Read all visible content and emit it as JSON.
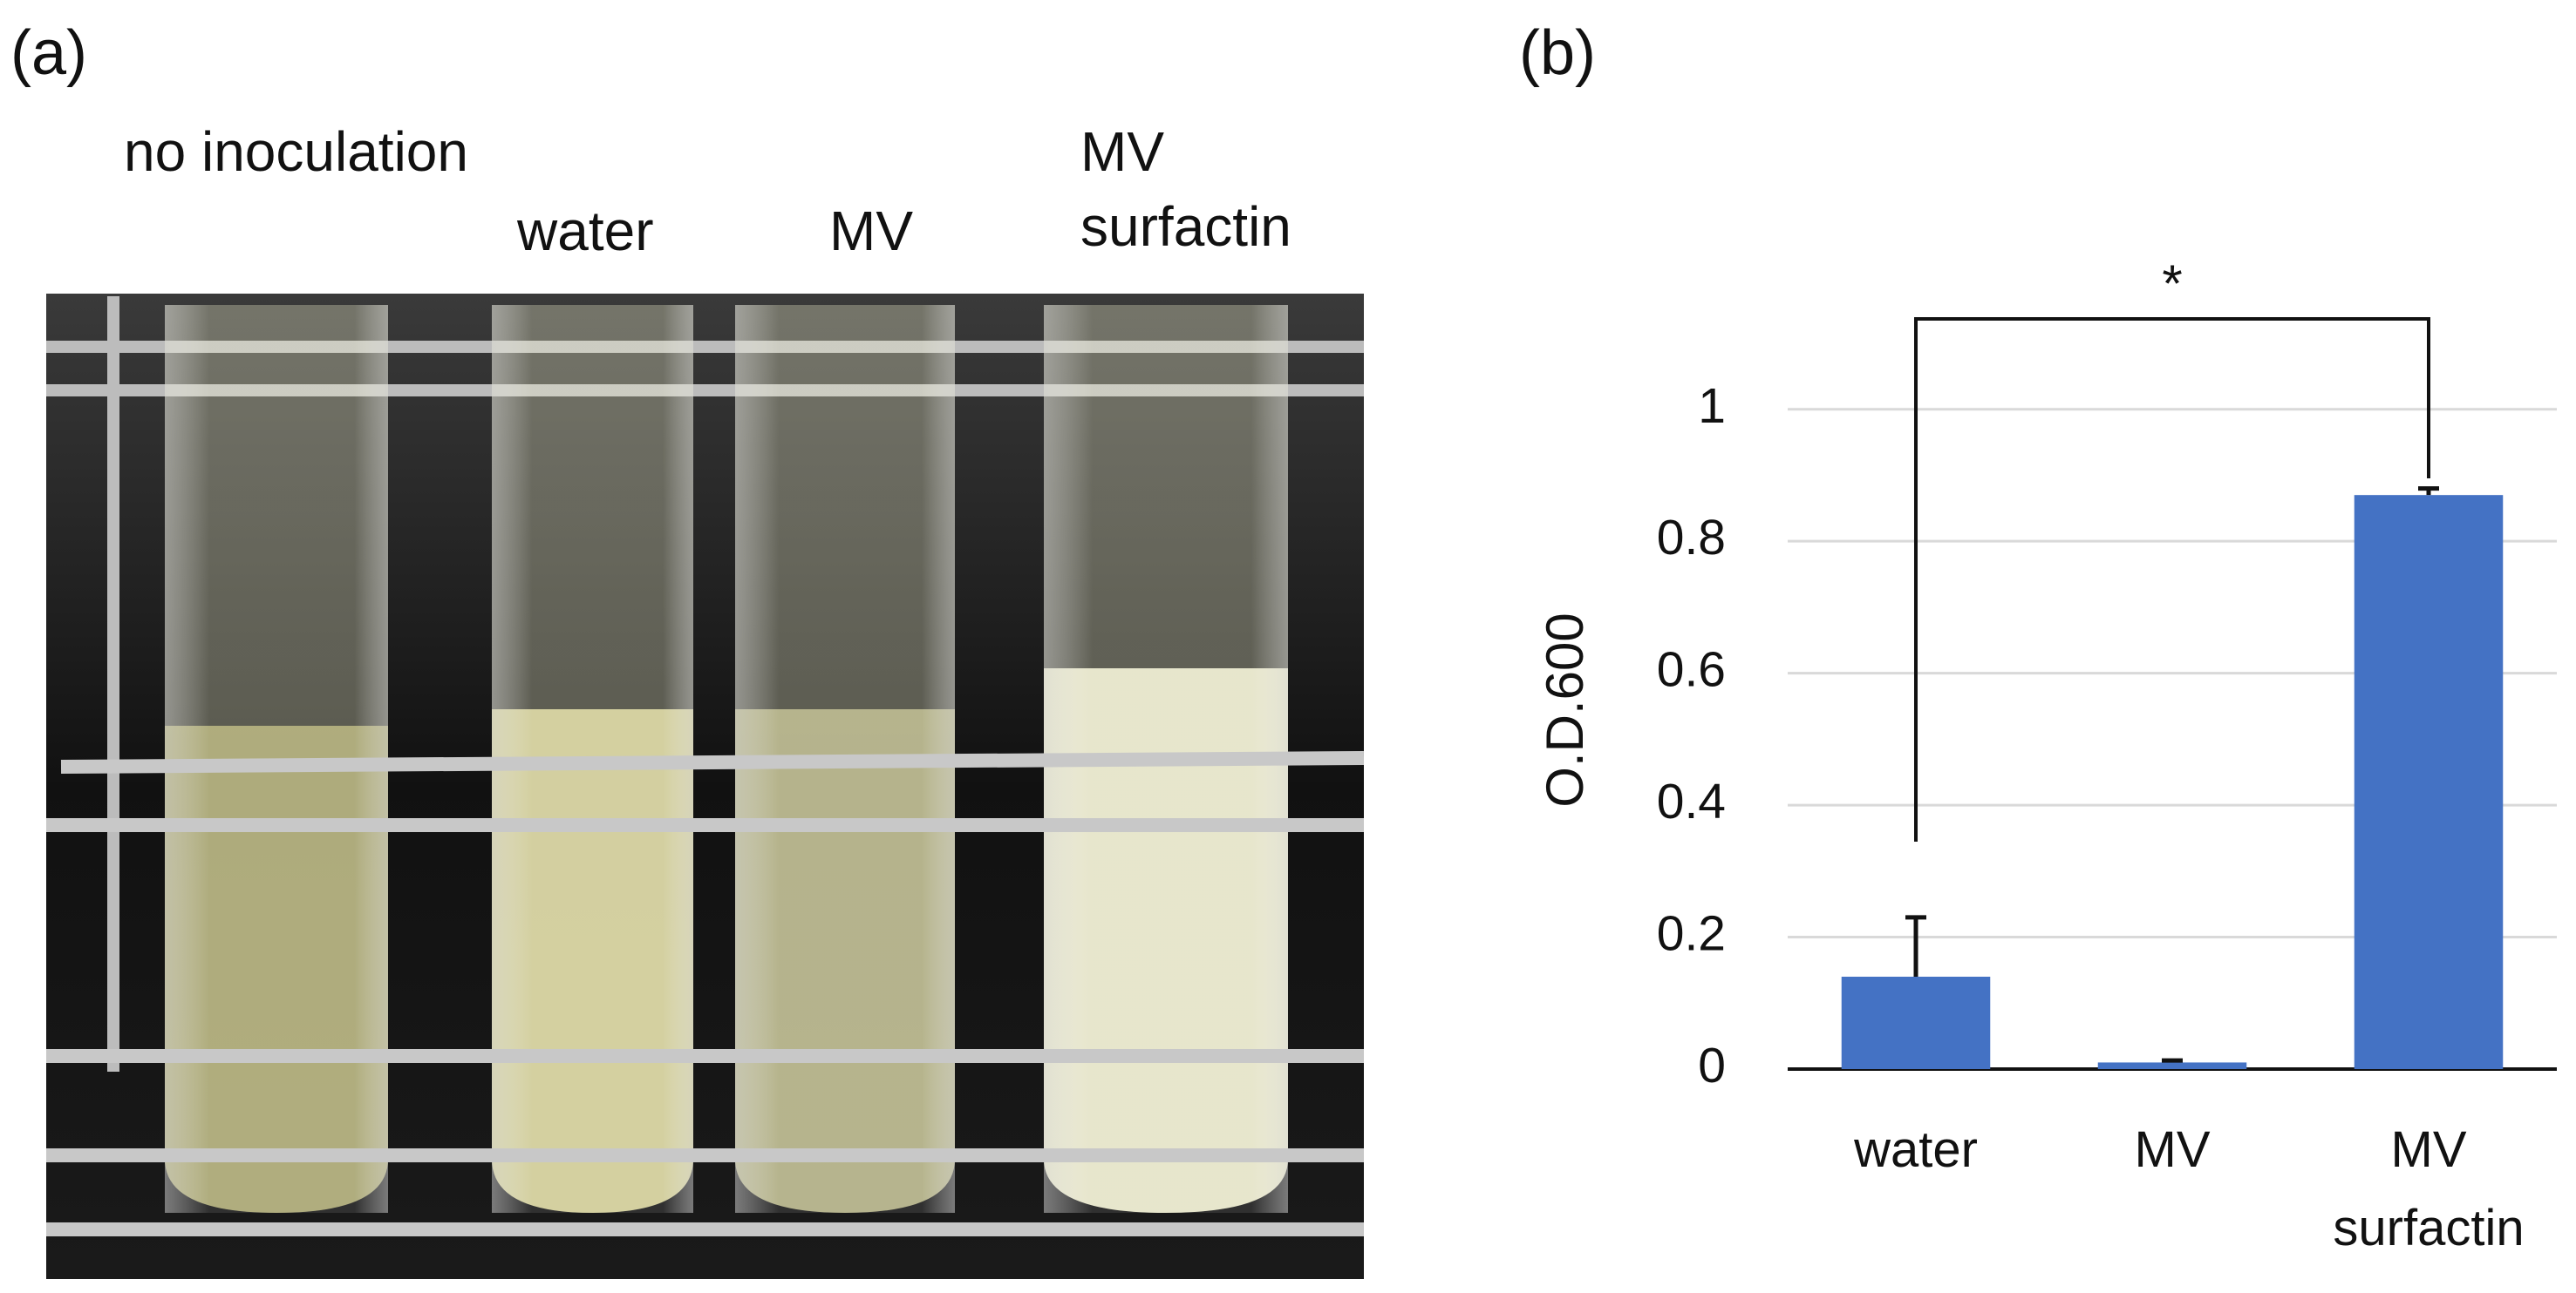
{
  "panel_a": {
    "label": "(a)",
    "tube_labels": [
      "no inoculation",
      "water",
      "MV",
      "MV surfactin"
    ]
  },
  "chart_data": {
    "type": "bar",
    "panel_label": "(b)",
    "y_label": "O.D.600",
    "categories": [
      "water",
      "MV",
      "MV surfactin"
    ],
    "values": [
      0.14,
      0.01,
      0.87
    ],
    "errors": [
      0.09,
      0.003,
      0.01
    ],
    "color": "#4472c4",
    "ylim": [
      0,
      1.1
    ],
    "yticks": [
      0,
      0.2,
      0.4,
      0.6,
      0.8,
      1
    ],
    "grid": true,
    "annotation": "*"
  }
}
